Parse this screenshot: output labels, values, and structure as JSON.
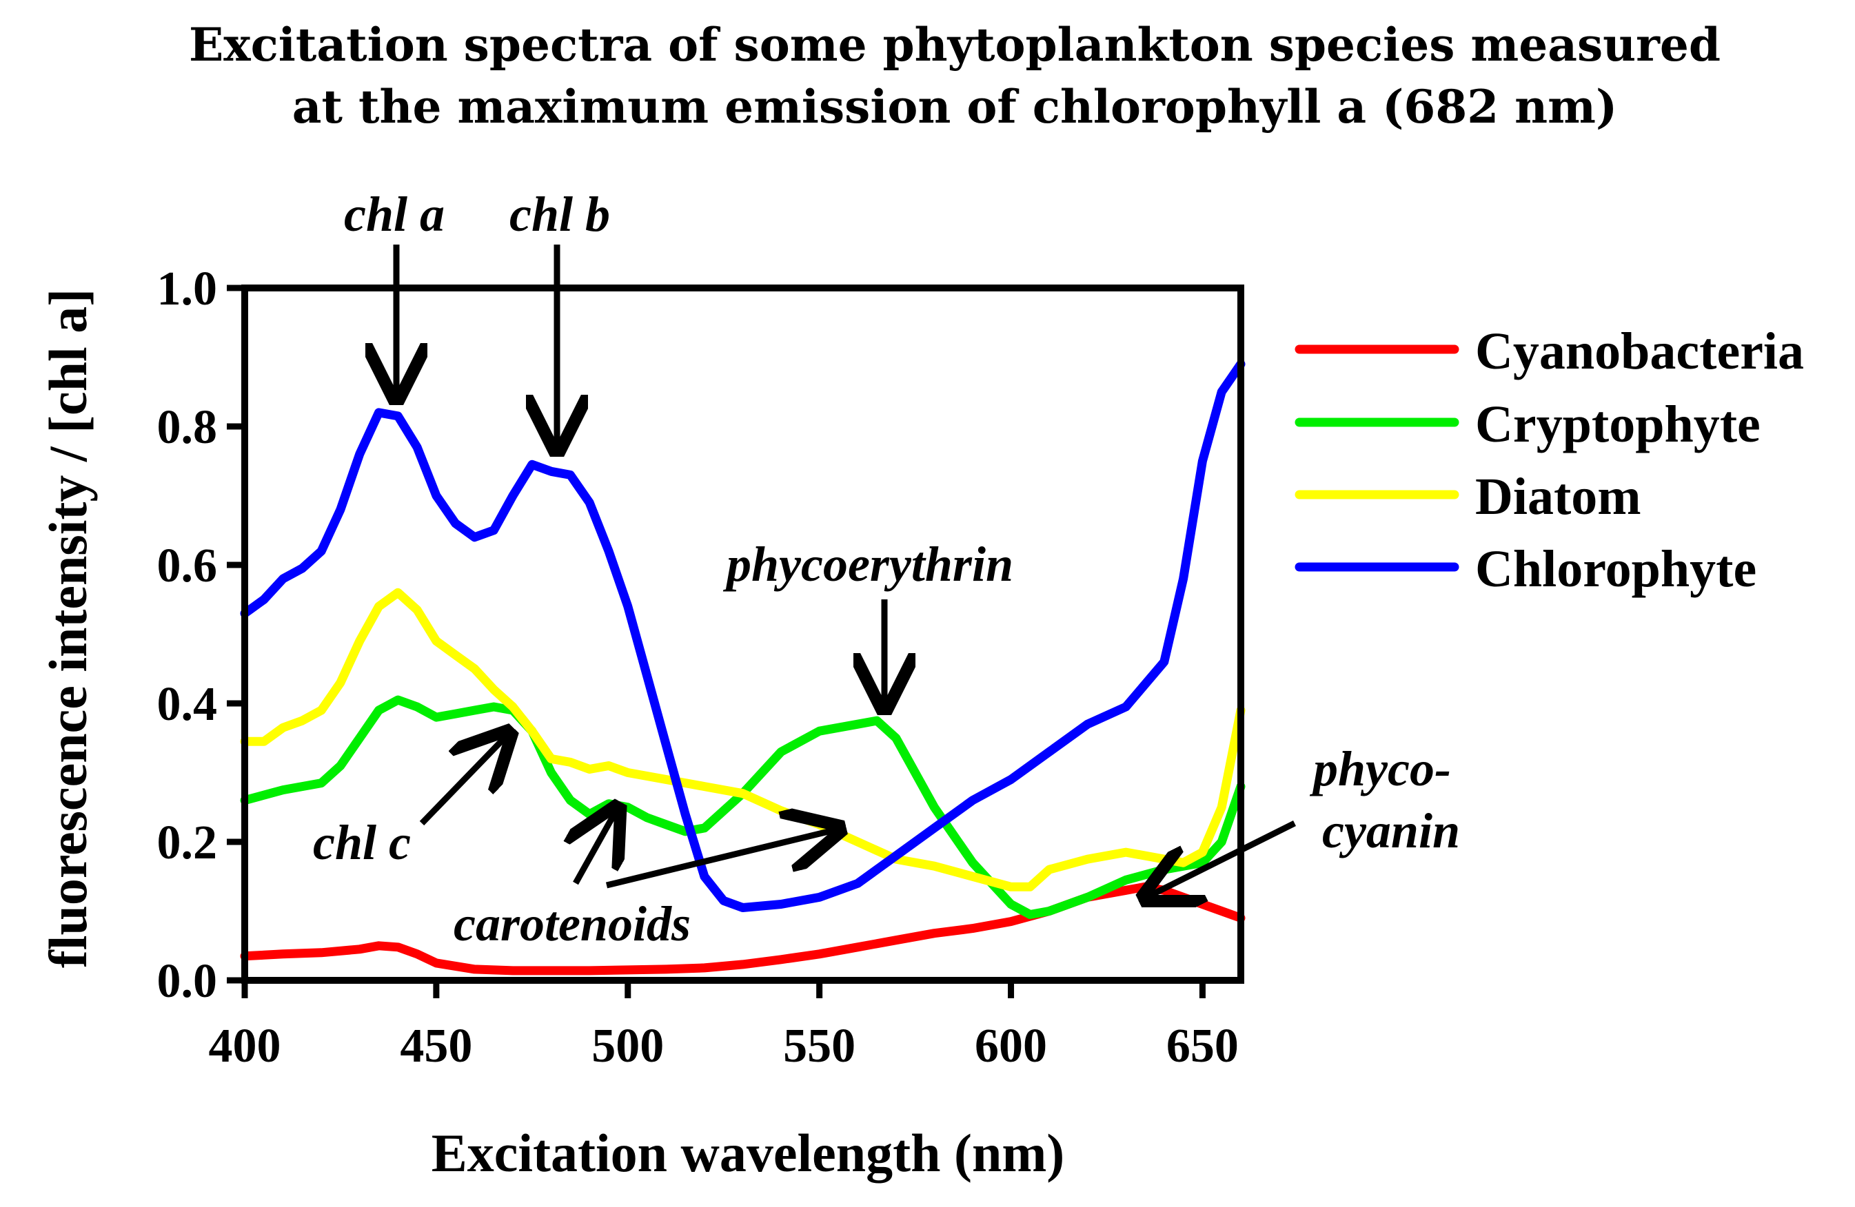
{
  "chart_data": {
    "type": "line",
    "title_lines": [
      "Excitation spectra of some phytoplankton species measured",
      "at the maximum emission of chlorophyll a (682 nm)"
    ],
    "xlabel": "Excitation wavelength (nm)",
    "ylabel": "fluorescence intensity  / [chl a]",
    "xlim": [
      400,
      660
    ],
    "ylim": [
      0,
      1.0
    ],
    "xticks": [
      400,
      450,
      500,
      550,
      600,
      650
    ],
    "xtick_labels": [
      "400",
      "450",
      "500",
      "550",
      "600",
      "650"
    ],
    "yticks": [
      0,
      0.2,
      0.4,
      0.6,
      0.8,
      1.0
    ],
    "ytick_labels": [
      "0.0",
      "0.2",
      "0.4",
      "0.6",
      "0.8",
      "1.0"
    ],
    "grid": false,
    "legend_position": "right",
    "series": [
      {
        "name": "Cyanobacteria",
        "color": "#ff0000",
        "x": [
          400,
          410,
          420,
          430,
          435,
          440,
          445,
          450,
          460,
          470,
          480,
          490,
          500,
          510,
          520,
          530,
          540,
          550,
          560,
          570,
          580,
          590,
          600,
          610,
          620,
          630,
          635,
          640,
          650,
          660
        ],
        "y": [
          0.035,
          0.038,
          0.04,
          0.045,
          0.05,
          0.048,
          0.038,
          0.025,
          0.016,
          0.014,
          0.014,
          0.014,
          0.015,
          0.016,
          0.018,
          0.023,
          0.03,
          0.038,
          0.048,
          0.058,
          0.068,
          0.075,
          0.085,
          0.1,
          0.12,
          0.13,
          0.135,
          0.13,
          0.11,
          0.09
        ]
      },
      {
        "name": "Cryptophyte",
        "color": "#00ee00",
        "x": [
          400,
          410,
          420,
          425,
          430,
          435,
          440,
          445,
          450,
          455,
          460,
          465,
          470,
          475,
          480,
          485,
          490,
          495,
          500,
          505,
          510,
          515,
          520,
          530,
          540,
          550,
          560,
          565,
          570,
          580,
          590,
          600,
          605,
          610,
          620,
          630,
          640,
          645,
          650,
          655,
          660
        ],
        "y": [
          0.26,
          0.275,
          0.285,
          0.31,
          0.35,
          0.39,
          0.405,
          0.395,
          0.38,
          0.385,
          0.39,
          0.395,
          0.39,
          0.36,
          0.3,
          0.26,
          0.24,
          0.255,
          0.25,
          0.235,
          0.225,
          0.215,
          0.22,
          0.27,
          0.33,
          0.36,
          0.37,
          0.375,
          0.35,
          0.25,
          0.17,
          0.11,
          0.095,
          0.1,
          0.12,
          0.145,
          0.16,
          0.165,
          0.17,
          0.2,
          0.28
        ]
      },
      {
        "name": "Diatom",
        "color": "#ffff00",
        "x": [
          400,
          405,
          410,
          415,
          420,
          425,
          430,
          435,
          440,
          445,
          450,
          455,
          460,
          465,
          470,
          475,
          480,
          485,
          490,
          495,
          500,
          510,
          520,
          530,
          540,
          550,
          560,
          570,
          580,
          590,
          600,
          605,
          610,
          620,
          630,
          640,
          645,
          650,
          655,
          660
        ],
        "y": [
          0.345,
          0.345,
          0.365,
          0.375,
          0.39,
          0.43,
          0.49,
          0.54,
          0.56,
          0.535,
          0.49,
          0.47,
          0.45,
          0.42,
          0.395,
          0.36,
          0.32,
          0.315,
          0.305,
          0.31,
          0.3,
          0.29,
          0.28,
          0.27,
          0.245,
          0.225,
          0.2,
          0.175,
          0.165,
          0.15,
          0.135,
          0.135,
          0.16,
          0.175,
          0.185,
          0.175,
          0.17,
          0.185,
          0.25,
          0.39
        ]
      },
      {
        "name": "Chlorophyte",
        "color": "#0000ff",
        "x": [
          400,
          405,
          410,
          415,
          420,
          425,
          430,
          435,
          440,
          445,
          450,
          455,
          460,
          465,
          470,
          475,
          480,
          485,
          490,
          495,
          500,
          505,
          510,
          515,
          520,
          525,
          530,
          540,
          550,
          560,
          570,
          580,
          590,
          600,
          610,
          620,
          630,
          640,
          645,
          650,
          655,
          660
        ],
        "y": [
          0.53,
          0.55,
          0.58,
          0.595,
          0.62,
          0.68,
          0.76,
          0.82,
          0.815,
          0.77,
          0.7,
          0.66,
          0.64,
          0.65,
          0.7,
          0.745,
          0.735,
          0.73,
          0.69,
          0.62,
          0.54,
          0.44,
          0.34,
          0.24,
          0.15,
          0.115,
          0.105,
          0.11,
          0.12,
          0.14,
          0.18,
          0.22,
          0.26,
          0.29,
          0.33,
          0.37,
          0.395,
          0.46,
          0.58,
          0.75,
          0.85,
          0.89
        ]
      }
    ],
    "annotations": [
      {
        "text": "chl a",
        "target_x": 440,
        "target_y": 0.82
      },
      {
        "text": "chl b",
        "target_x": 481,
        "target_y": 0.76
      },
      {
        "text": "phycoerythrin",
        "target_x": 567,
        "target_y": 0.39
      },
      {
        "text": "chl c",
        "target_x": 470,
        "target_y": 0.4
      },
      {
        "text": "carotenoids",
        "target_x": [
          497,
          560
        ],
        "target_y": [
          0.26,
          0.22
        ]
      },
      {
        "text": "phyco-",
        "target_x": 633,
        "target_y": 0.13
      },
      {
        "text": "cyanin",
        "target_x": 633,
        "target_y": 0.13
      }
    ]
  }
}
